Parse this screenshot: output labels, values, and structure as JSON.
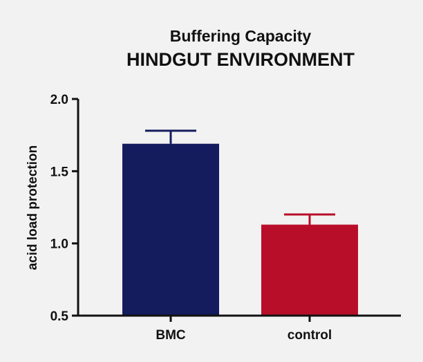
{
  "chart_data": {
    "type": "bar",
    "title": "Buffering Capacity",
    "subtitle": "HINDGUT ENVIRONMENT",
    "xlabel": "",
    "ylabel": "acid load protection",
    "categories": [
      "BMC",
      "control"
    ],
    "values": [
      1.69,
      1.13
    ],
    "errors": [
      0.09,
      0.07
    ],
    "colors": [
      "#141c5e",
      "#b80e29"
    ],
    "error_bar_colors": [
      "#141c5e",
      "#b80e29"
    ],
    "ylim": [
      0.5,
      2.0
    ],
    "yticks": [
      0.5,
      1.0,
      1.5,
      2.0
    ],
    "ytick_labels": [
      "0.5",
      "1.0",
      "1.5",
      "2.0"
    ],
    "grid": false,
    "legend": "none"
  }
}
